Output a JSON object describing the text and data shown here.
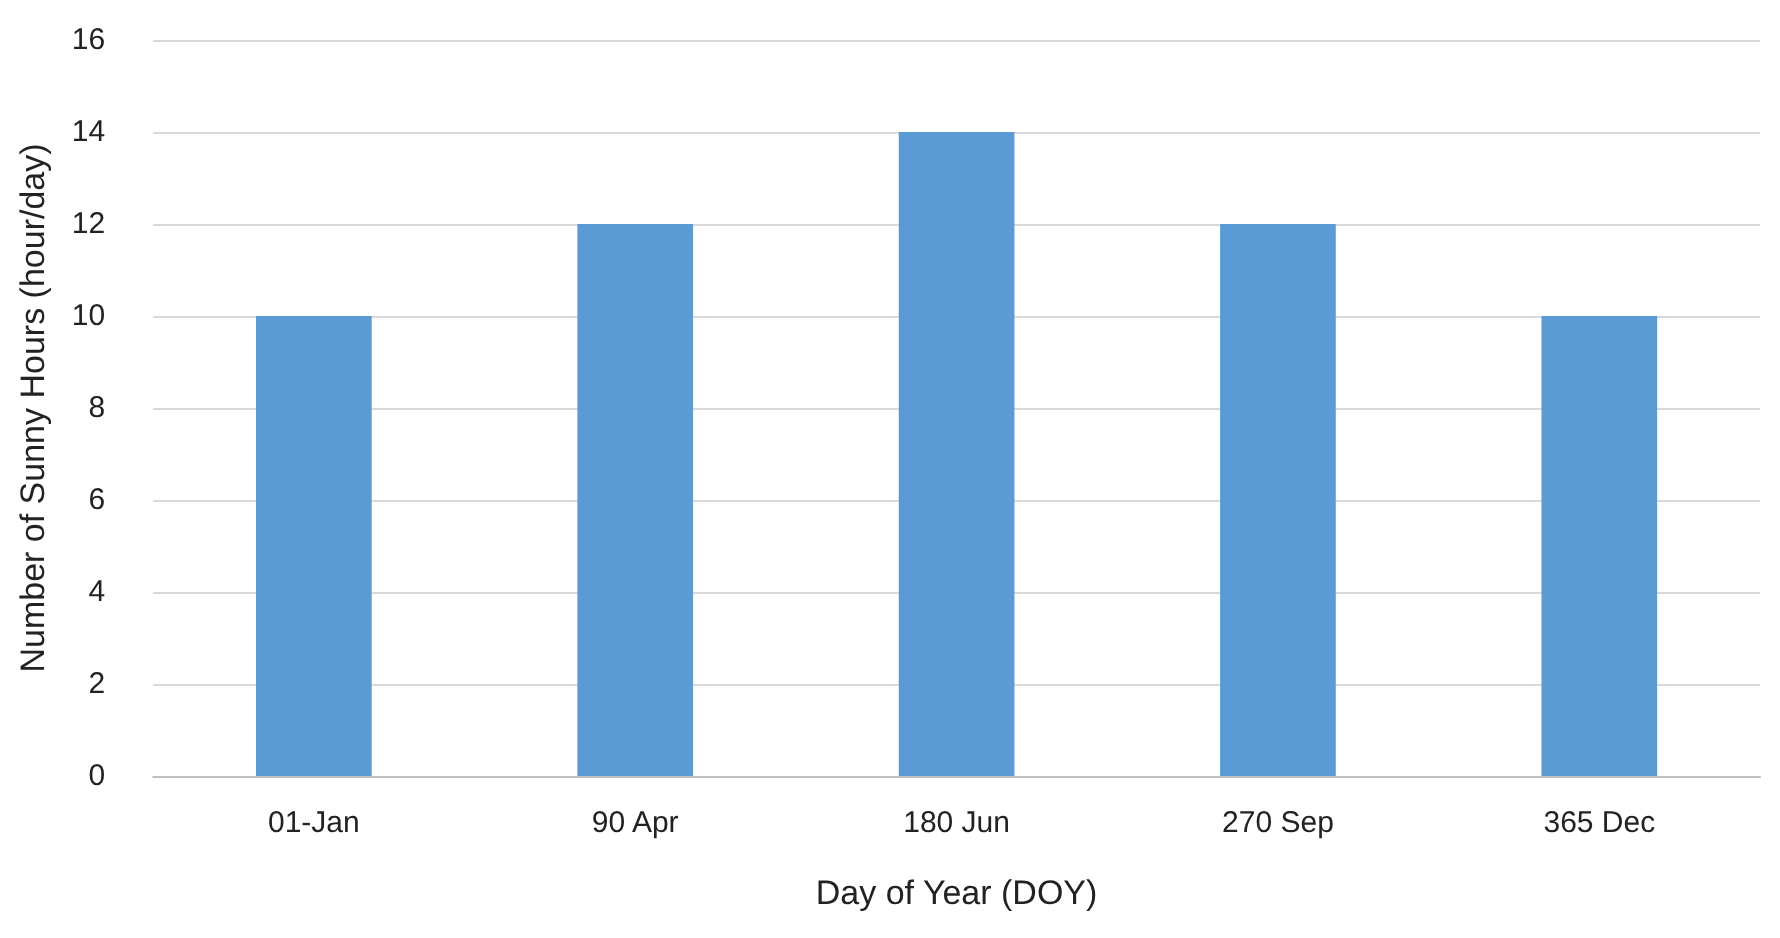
{
  "chart_data": {
    "type": "bar",
    "xlabel": "Day of Year (DOY)",
    "ylabel": "Number of Sunny Hours (hour/day)",
    "categories": [
      "01-Jan",
      "90 Apr",
      "180 Jun",
      "270 Sep",
      "365 Dec"
    ],
    "values": [
      10,
      12,
      14,
      12,
      10
    ],
    "color": "#5b9bd5",
    "ylim": [
      0,
      16
    ],
    "yticks": [
      0,
      2,
      4,
      6,
      8,
      10,
      12,
      14,
      16
    ],
    "grid": "y"
  }
}
